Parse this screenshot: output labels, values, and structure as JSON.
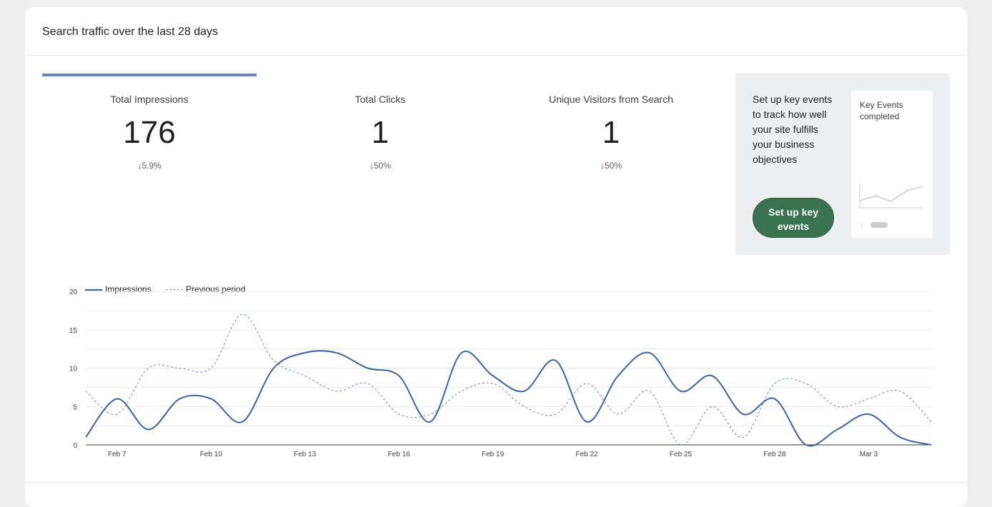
{
  "header": {
    "title": "Search traffic over the last 28 days"
  },
  "metrics": [
    {
      "label": "Total Impressions",
      "value": "176",
      "change": "5.9%",
      "direction": "down",
      "selected": true
    },
    {
      "label": "Total Clicks",
      "value": "1",
      "change": "50%",
      "direction": "down",
      "selected": false
    },
    {
      "label": "Unique Visitors from Search",
      "value": "1",
      "change": "50%",
      "direction": "down",
      "selected": false
    }
  ],
  "promo": {
    "text": "Set up key events to track how well your site fulfills your business objectives",
    "button": "Set up key events",
    "mini_title": "Key Events completed"
  },
  "colors": {
    "series": "#3c64a0",
    "accent_green": "#3a7350",
    "down_arrow": "#c5221f"
  },
  "chart_data": {
    "type": "line",
    "x": [
      "Feb 6",
      "Feb 7",
      "Feb 8",
      "Feb 9",
      "Feb 10",
      "Feb 11",
      "Feb 12",
      "Feb 13",
      "Feb 14",
      "Feb 15",
      "Feb 16",
      "Feb 17",
      "Feb 18",
      "Feb 19",
      "Feb 20",
      "Feb 21",
      "Feb 22",
      "Feb 23",
      "Feb 24",
      "Feb 25",
      "Feb 26",
      "Feb 27",
      "Feb 28",
      "Mar 1",
      "Mar 2",
      "Mar 3",
      "Mar 4",
      "Mar 5"
    ],
    "series": [
      {
        "name": "Impressions",
        "style": "solid",
        "values": [
          1,
          6,
          2,
          6,
          6,
          3,
          10,
          12,
          12,
          10,
          9,
          3,
          12,
          9,
          7,
          11,
          3,
          9,
          12,
          7,
          9,
          4,
          6,
          0,
          2,
          4,
          1,
          0
        ]
      },
      {
        "name": "Previous period",
        "style": "dashed",
        "values": [
          7,
          4,
          10,
          10,
          10,
          17,
          11,
          9,
          7,
          8,
          4,
          4,
          7,
          8,
          5,
          4,
          8,
          4,
          7,
          0,
          5,
          1,
          8,
          8,
          5,
          6,
          7,
          3
        ]
      }
    ],
    "x_tick_labels": [
      "Feb 7",
      "Feb 10",
      "Feb 13",
      "Feb 16",
      "Feb 19",
      "Feb 22",
      "Feb 25",
      "Feb 28",
      "Mar 3"
    ],
    "y_ticks": [
      "0",
      "5",
      "10",
      "15",
      "20"
    ],
    "ylim": [
      0,
      20
    ],
    "grid": true,
    "legend": "top-left"
  }
}
